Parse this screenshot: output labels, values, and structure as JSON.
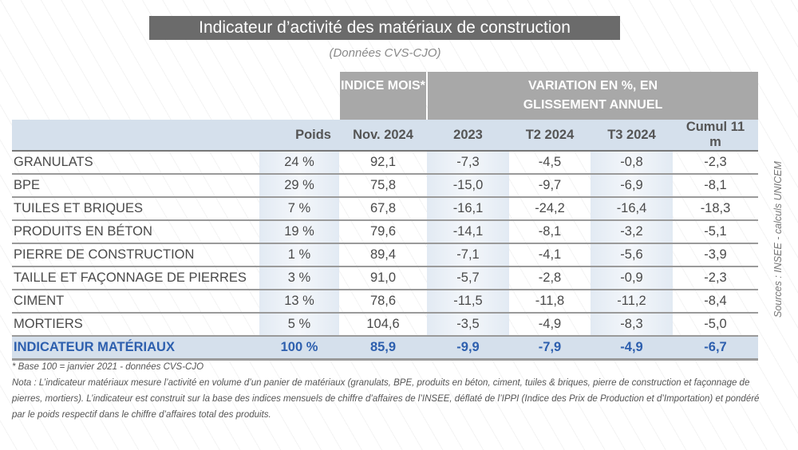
{
  "title": "Indicateur d’activité des matériaux de construction",
  "subtitle": "(Données CVS-CJO)",
  "header_groups": {
    "indice": "INDICE MOIS*",
    "variation": "VARIATION EN %, EN GLISSEMENT ANNUEL"
  },
  "columns": [
    "",
    "Poids",
    "Nov. 2024",
    "2023",
    "T2 2024",
    "T3 2024",
    "Cumul 11 m"
  ],
  "rows": [
    [
      "GRANULATS",
      "24 %",
      "92,1",
      "-7,3",
      "-4,5",
      "-0,8",
      "-2,3"
    ],
    [
      "BPE",
      "29 %",
      "75,8",
      "-15,0",
      "-9,7",
      "-6,9",
      "-8,1"
    ],
    [
      "TUILES ET BRIQUES",
      "7 %",
      "67,8",
      "-16,1",
      "-24,2",
      "-16,4",
      "-18,3"
    ],
    [
      "PRODUITS EN BÉTON",
      "19 %",
      "79,6",
      "-14,1",
      "-8,1",
      "-3,2",
      "-5,1"
    ],
    [
      "PIERRE DE CONSTRUCTION",
      "1 %",
      "89,4",
      "-7,1",
      "-4,1",
      "-5,6",
      "-3,9"
    ],
    [
      "TAILLE ET FAÇONNAGE DE PIERRES",
      "3 %",
      "91,0",
      "-5,7",
      "-2,8",
      "-0,9",
      "-2,3"
    ],
    [
      "CIMENT",
      "13 %",
      "78,6",
      "-11,5",
      "-11,8",
      "-11,2",
      "-8,4"
    ],
    [
      "MORTIERS",
      "5 %",
      "104,6",
      "-3,5",
      "-4,9",
      "-8,3",
      "-5,0"
    ]
  ],
  "total": [
    "INDICATEUR MATÉRIAUX",
    "100 %",
    "85,9",
    "-9,9",
    "-7,9",
    "-4,9",
    "-6,7"
  ],
  "footnote": "* Base 100 = janvier 2021 - données CVS-CJO",
  "nota": "Nota :  L’indicateur matériaux mesure l’activité en volume d’un panier de matériaux (granulats, BPE, produits en béton, ciment, tuiles & briques, pierre de construction et façonnage de pierres, mortiers). L’indicateur est construit sur la base des indices mensuels de chiffre d’affaires de l’INSEE, déflaté de l’IPPI (Indice des Prix de Production et d’Importation) et pondéré par le poids respectif dans le chiffre d’affaires total des produits.",
  "source": "Sources : INSEE - calculs UNICEM",
  "colors": {
    "title_bg": "#6b6b6b",
    "header_bg": "#a8a8a8",
    "row_header_bg": "#d5e0ec",
    "total_text": "#2d5fae"
  }
}
